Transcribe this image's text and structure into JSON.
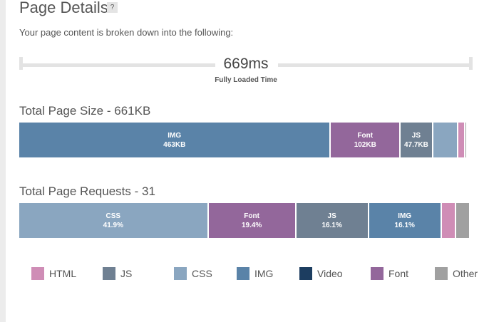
{
  "title": "Page Details",
  "help": "?",
  "description": "Your page content is broken down into the following:",
  "load_time": {
    "value": "669ms",
    "label": "Fully Loaded Time"
  },
  "size": {
    "title": "Total Page Size - 661KB",
    "segments": [
      {
        "type": "IMG",
        "label": "IMG",
        "value": "463KB",
        "share": 0.69,
        "color": "#5a83a8"
      },
      {
        "type": "Font",
        "label": "Font",
        "value": "102KB",
        "share": 0.154,
        "color": "#93679b"
      },
      {
        "type": "JS",
        "label": "JS",
        "value": "47.7KB",
        "share": 0.072,
        "color": "#6f8092"
      },
      {
        "type": "CSS",
        "label": "",
        "value": "",
        "share": 0.056,
        "color": "#8aa6c0"
      },
      {
        "type": "HTML",
        "label": "",
        "value": "",
        "share": 0.015,
        "color": "#cf8db6"
      },
      {
        "type": "Other",
        "label": "",
        "value": "",
        "share": 0.003,
        "color": "#a0a0a0"
      }
    ]
  },
  "requests": {
    "title": "Total Page Requests - 31",
    "segments": [
      {
        "type": "CSS",
        "label": "CSS",
        "value": "41.9%",
        "share": 0.419,
        "color": "#8aa6c0"
      },
      {
        "type": "Font",
        "label": "Font",
        "value": "19.4%",
        "share": 0.194,
        "color": "#93679b"
      },
      {
        "type": "JS",
        "label": "JS",
        "value": "16.1%",
        "share": 0.161,
        "color": "#6f8092"
      },
      {
        "type": "IMG",
        "label": "IMG",
        "value": "16.1%",
        "share": 0.161,
        "color": "#5a83a8"
      },
      {
        "type": "HTML",
        "label": "",
        "value": "",
        "share": 0.032,
        "color": "#cf8db6"
      },
      {
        "type": "Other",
        "label": "",
        "value": "",
        "share": 0.032,
        "color": "#a0a0a0"
      }
    ]
  },
  "legend": [
    {
      "label": "HTML",
      "color": "#cf8db6"
    },
    {
      "label": "JS",
      "color": "#6f8092"
    },
    {
      "label": "CSS",
      "color": "#8aa6c0"
    },
    {
      "label": "IMG",
      "color": "#5a83a8"
    },
    {
      "label": "Video",
      "color": "#1c3d60"
    },
    {
      "label": "Font",
      "color": "#93679b"
    },
    {
      "label": "Other",
      "color": "#a0a0a0"
    }
  ]
}
